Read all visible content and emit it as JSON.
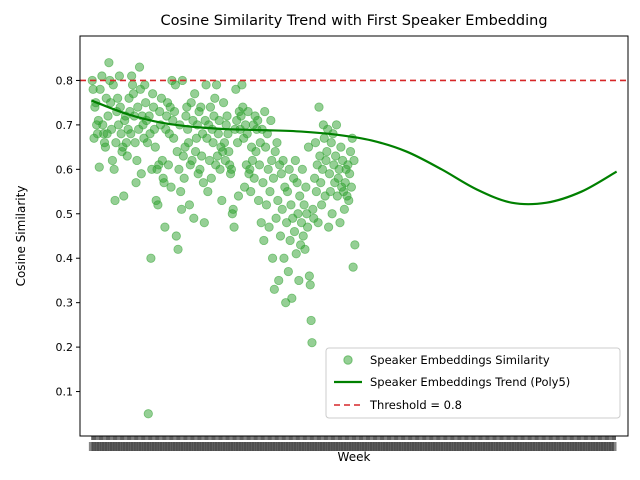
{
  "chart_data": {
    "type": "scatter",
    "title": "Cosine Similarity Trend with First Speaker Embedding",
    "xlabel": "Week",
    "ylabel": "Cosine Similarity",
    "xlim": [
      -13,
      613
    ],
    "ylim": [
      0.0,
      0.9
    ],
    "yticks": [
      0.1,
      0.2,
      0.3,
      0.4,
      0.5,
      0.6,
      0.7,
      0.8
    ],
    "ytick_labels": [
      "0.1",
      "0.2",
      "0.3",
      "0.4",
      "0.5",
      "0.6",
      "0.7",
      "0.8"
    ],
    "x_tick_count": 600,
    "x_tick_labels_note": "tick labels overlap and are illegible",
    "grid": false,
    "legend_position": "lower right",
    "colors": {
      "scatter": "#2ca02c",
      "trend": "#008000",
      "threshold": "#d62728"
    },
    "legend": [
      {
        "label": "Speaker Embeddings Similarity",
        "kind": "marker"
      },
      {
        "label": "Speaker Embeddings Trend (Poly5)",
        "kind": "line"
      },
      {
        "label": "Threshold = 0.8",
        "kind": "dashed"
      }
    ],
    "threshold": 0.8,
    "trend": {
      "x": [
        0,
        40,
        80,
        120,
        160,
        200,
        240,
        280,
        320,
        360,
        400,
        440,
        480,
        520,
        560,
        600
      ],
      "y": [
        0.755,
        0.725,
        0.705,
        0.695,
        0.69,
        0.688,
        0.685,
        0.678,
        0.665,
        0.64,
        0.6,
        0.555,
        0.525,
        0.525,
        0.55,
        0.595
      ]
    },
    "series": [
      {
        "name": "Speaker Embeddings Similarity",
        "points": [
          [
            1,
            0.8
          ],
          [
            2,
            0.78
          ],
          [
            3,
            0.67
          ],
          [
            4,
            0.74
          ],
          [
            5,
            0.75
          ],
          [
            6,
            0.7
          ],
          [
            7,
            0.68
          ],
          [
            8,
            0.71
          ],
          [
            9,
            0.605
          ],
          [
            10,
            0.78
          ],
          [
            12,
            0.81
          ],
          [
            13,
            0.7
          ],
          [
            14,
            0.68
          ],
          [
            15,
            0.66
          ],
          [
            16,
            0.65
          ],
          [
            17,
            0.76
          ],
          [
            18,
            0.68
          ],
          [
            19,
            0.72
          ],
          [
            20,
            0.84
          ],
          [
            21,
            0.8
          ],
          [
            22,
            0.75
          ],
          [
            23,
            0.69
          ],
          [
            24,
            0.62
          ],
          [
            25,
            0.79
          ],
          [
            26,
            0.6
          ],
          [
            27,
            0.53
          ],
          [
            28,
            0.66
          ],
          [
            29,
            0.73
          ],
          [
            30,
            0.76
          ],
          [
            31,
            0.7
          ],
          [
            32,
            0.81
          ],
          [
            33,
            0.74
          ],
          [
            34,
            0.68
          ],
          [
            35,
            0.64
          ],
          [
            36,
            0.65
          ],
          [
            37,
            0.54
          ],
          [
            38,
            0.71
          ],
          [
            39,
            0.72
          ],
          [
            40,
            0.66
          ],
          [
            41,
            0.63
          ],
          [
            42,
            0.69
          ],
          [
            43,
            0.76
          ],
          [
            44,
            0.73
          ],
          [
            45,
            0.68
          ],
          [
            46,
            0.81
          ],
          [
            47,
            0.79
          ],
          [
            48,
            0.77
          ],
          [
            49,
            0.72
          ],
          [
            50,
            0.66
          ],
          [
            51,
            0.57
          ],
          [
            52,
            0.62
          ],
          [
            53,
            0.74
          ],
          [
            54,
            0.69
          ],
          [
            55,
            0.83
          ],
          [
            56,
            0.78
          ],
          [
            57,
            0.59
          ],
          [
            58,
            0.72
          ],
          [
            59,
            0.7
          ],
          [
            60,
            0.67
          ],
          [
            61,
            0.79
          ],
          [
            62,
            0.75
          ],
          [
            63,
            0.71
          ],
          [
            64,
            0.66
          ],
          [
            65,
            0.05
          ],
          [
            66,
            0.72
          ],
          [
            67,
            0.68
          ],
          [
            68,
            0.4
          ],
          [
            69,
            0.6
          ],
          [
            70,
            0.77
          ],
          [
            71,
            0.74
          ],
          [
            72,
            0.69
          ],
          [
            73,
            0.65
          ],
          [
            74,
            0.53
          ],
          [
            75,
            0.6
          ],
          [
            76,
            0.52
          ],
          [
            77,
            0.61
          ],
          [
            78,
            0.73
          ],
          [
            79,
            0.7
          ],
          [
            80,
            0.76
          ],
          [
            81,
            0.62
          ],
          [
            82,
            0.58
          ],
          [
            83,
            0.57
          ],
          [
            84,
            0.47
          ],
          [
            85,
            0.69
          ],
          [
            86,
            0.72
          ],
          [
            87,
            0.75
          ],
          [
            88,
            0.61
          ],
          [
            89,
            0.68
          ],
          [
            90,
            0.74
          ],
          [
            91,
            0.56
          ],
          [
            92,
            0.8
          ],
          [
            93,
            0.71
          ],
          [
            94,
            0.67
          ],
          [
            95,
            0.73
          ],
          [
            96,
            0.79
          ],
          [
            97,
            0.45
          ],
          [
            98,
            0.64
          ],
          [
            99,
            0.42
          ],
          [
            100,
            0.6
          ],
          [
            101,
            0.7
          ],
          [
            102,
            0.55
          ],
          [
            103,
            0.51
          ],
          [
            104,
            0.8
          ],
          [
            105,
            0.63
          ],
          [
            106,
            0.58
          ],
          [
            107,
            0.65
          ],
          [
            108,
            0.72
          ],
          [
            109,
            0.74
          ],
          [
            110,
            0.69
          ],
          [
            111,
            0.66
          ],
          [
            112,
            0.52
          ],
          [
            113,
            0.61
          ],
          [
            114,
            0.75
          ],
          [
            115,
            0.62
          ],
          [
            116,
            0.71
          ],
          [
            117,
            0.49
          ],
          [
            118,
            0.77
          ],
          [
            119,
            0.64
          ],
          [
            120,
            0.67
          ],
          [
            121,
            0.7
          ],
          [
            122,
            0.59
          ],
          [
            123,
            0.73
          ],
          [
            124,
            0.6
          ],
          [
            125,
            0.74
          ],
          [
            126,
            0.63
          ],
          [
            127,
            0.68
          ],
          [
            128,
            0.57
          ],
          [
            129,
            0.48
          ],
          [
            130,
            0.71
          ],
          [
            131,
            0.79
          ],
          [
            132,
            0.67
          ],
          [
            133,
            0.55
          ],
          [
            134,
            0.7
          ],
          [
            135,
            0.62
          ],
          [
            136,
            0.74
          ],
          [
            137,
            0.58
          ],
          [
            138,
            0.69
          ],
          [
            139,
            0.66
          ],
          [
            140,
            0.72
          ],
          [
            141,
            0.76
          ],
          [
            142,
            0.61
          ],
          [
            143,
            0.79
          ],
          [
            144,
            0.63
          ],
          [
            145,
            0.68
          ],
          [
            146,
            0.71
          ],
          [
            147,
            0.6
          ],
          [
            148,
            0.65
          ],
          [
            149,
            0.53
          ],
          [
            150,
            0.64
          ],
          [
            151,
            0.75
          ],
          [
            152,
            0.66
          ],
          [
            153,
            0.62
          ],
          [
            154,
            0.7
          ],
          [
            155,
            0.72
          ],
          [
            156,
            0.68
          ],
          [
            157,
            0.64
          ],
          [
            158,
            0.61
          ],
          [
            159,
            0.59
          ],
          [
            160,
            0.6
          ],
          [
            161,
            0.5
          ],
          [
            162,
            0.51
          ],
          [
            163,
            0.47
          ],
          [
            164,
            0.69
          ],
          [
            165,
            0.78
          ],
          [
            166,
            0.71
          ],
          [
            167,
            0.66
          ],
          [
            168,
            0.54
          ],
          [
            169,
            0.73
          ],
          [
            170,
            0.69
          ],
          [
            171,
            0.72
          ],
          [
            172,
            0.79
          ],
          [
            173,
            0.74
          ],
          [
            174,
            0.67
          ],
          [
            175,
            0.56
          ],
          [
            176,
            0.7
          ],
          [
            177,
            0.61
          ],
          [
            178,
            0.68
          ],
          [
            179,
            0.73
          ],
          [
            180,
            0.59
          ],
          [
            181,
            0.6
          ],
          [
            182,
            0.55
          ],
          [
            183,
            0.65
          ],
          [
            184,
            0.62
          ],
          [
            185,
            0.7
          ],
          [
            186,
            0.58
          ],
          [
            187,
            0.72
          ],
          [
            188,
            0.64
          ],
          [
            189,
            0.69
          ],
          [
            190,
            0.71
          ],
          [
            191,
            0.53
          ],
          [
            192,
            0.61
          ],
          [
            193,
            0.66
          ],
          [
            194,
            0.48
          ],
          [
            195,
            0.69
          ],
          [
            196,
            0.57
          ],
          [
            197,
            0.44
          ],
          [
            198,
            0.73
          ],
          [
            199,
            0.65
          ],
          [
            200,
            0.52
          ],
          [
            201,
            0.68
          ],
          [
            202,
            0.6
          ],
          [
            203,
            0.47
          ],
          [
            204,
            0.55
          ],
          [
            205,
            0.71
          ],
          [
            206,
            0.62
          ],
          [
            207,
            0.4
          ],
          [
            208,
            0.58
          ],
          [
            209,
            0.33
          ],
          [
            210,
            0.64
          ],
          [
            211,
            0.49
          ],
          [
            212,
            0.66
          ],
          [
            213,
            0.53
          ],
          [
            214,
            0.35
          ],
          [
            215,
            0.61
          ],
          [
            216,
            0.45
          ],
          [
            217,
            0.59
          ],
          [
            218,
            0.51
          ],
          [
            219,
            0.62
          ],
          [
            220,
            0.4
          ],
          [
            221,
            0.56
          ],
          [
            222,
            0.3
          ],
          [
            223,
            0.48
          ],
          [
            224,
            0.55
          ],
          [
            225,
            0.37
          ],
          [
            226,
            0.6
          ],
          [
            227,
            0.44
          ],
          [
            228,
            0.52
          ],
          [
            229,
            0.31
          ],
          [
            230,
            0.49
          ],
          [
            231,
            0.58
          ],
          [
            232,
            0.46
          ],
          [
            233,
            0.62
          ],
          [
            234,
            0.41
          ],
          [
            235,
            0.57
          ],
          [
            236,
            0.5
          ],
          [
            237,
            0.35
          ],
          [
            238,
            0.54
          ],
          [
            239,
            0.43
          ],
          [
            240,
            0.48
          ],
          [
            241,
            0.6
          ],
          [
            242,
            0.45
          ],
          [
            243,
            0.52
          ],
          [
            244,
            0.42
          ],
          [
            245,
            0.56
          ],
          [
            246,
            0.5
          ],
          [
            247,
            0.47
          ],
          [
            248,
            0.65
          ],
          [
            249,
            0.36
          ],
          [
            250,
            0.34
          ],
          [
            251,
            0.26
          ],
          [
            252,
            0.21
          ],
          [
            253,
            0.51
          ],
          [
            254,
            0.49
          ],
          [
            255,
            0.58
          ],
          [
            256,
            0.66
          ],
          [
            257,
            0.55
          ],
          [
            258,
            0.61
          ],
          [
            259,
            0.48
          ],
          [
            260,
            0.74
          ],
          [
            261,
            0.63
          ],
          [
            262,
            0.57
          ],
          [
            263,
            0.52
          ],
          [
            264,
            0.6
          ],
          [
            265,
            0.7
          ],
          [
            266,
            0.67
          ],
          [
            267,
            0.54
          ],
          [
            268,
            0.62
          ],
          [
            269,
            0.64
          ],
          [
            270,
            0.69
          ],
          [
            271,
            0.47
          ],
          [
            272,
            0.59
          ],
          [
            273,
            0.55
          ],
          [
            274,
            0.66
          ],
          [
            275,
            0.5
          ],
          [
            276,
            0.68
          ],
          [
            277,
            0.61
          ],
          [
            278,
            0.57
          ],
          [
            279,
            0.63
          ],
          [
            280,
            0.7
          ],
          [
            281,
            0.54
          ],
          [
            282,
            0.58
          ],
          [
            283,
            0.6
          ],
          [
            284,
            0.48
          ],
          [
            285,
            0.65
          ],
          [
            286,
            0.56
          ],
          [
            287,
            0.62
          ],
          [
            288,
            0.55
          ],
          [
            289,
            0.51
          ],
          [
            290,
            0.57
          ],
          [
            291,
            0.6
          ],
          [
            292,
            0.54
          ],
          [
            293,
            0.61
          ],
          [
            294,
            0.53
          ],
          [
            295,
            0.59
          ],
          [
            296,
            0.64
          ],
          [
            297,
            0.56
          ],
          [
            298,
            0.67
          ],
          [
            299,
            0.38
          ],
          [
            300,
            0.62
          ],
          [
            301,
            0.43
          ]
        ]
      }
    ]
  }
}
